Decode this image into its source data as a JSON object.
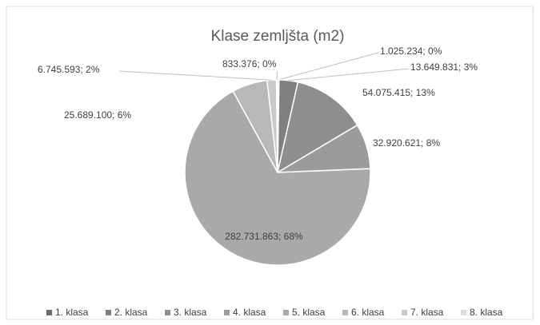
{
  "chart_data": {
    "type": "pie",
    "title": "Klase zemljšta (m2)",
    "categories": [
      "1. klasa",
      "2. klasa",
      "3. klasa",
      "4. klasa",
      "5. klasa",
      "6. klasa",
      "7. klasa",
      "8. klasa"
    ],
    "values": [
      1025234,
      13649831,
      54075415,
      32920621,
      282731863,
      25689100,
      6745593,
      833376
    ],
    "value_labels": [
      "1.025.234; 0%",
      "13.649.831; 3%",
      "54.075.415; 13%",
      "32.920.621; 8%",
      "282.731.863; 68%",
      "25.689.100; 6%",
      "6.745.593; 2%",
      "833.376; 0%"
    ],
    "colors": [
      "#6b6b6b",
      "#808080",
      "#8e8e8e",
      "#9b9b9b",
      "#a9a9a9",
      "#b8b8b8",
      "#c9c9c9",
      "#dcdcdc"
    ],
    "legend": "bottom"
  }
}
